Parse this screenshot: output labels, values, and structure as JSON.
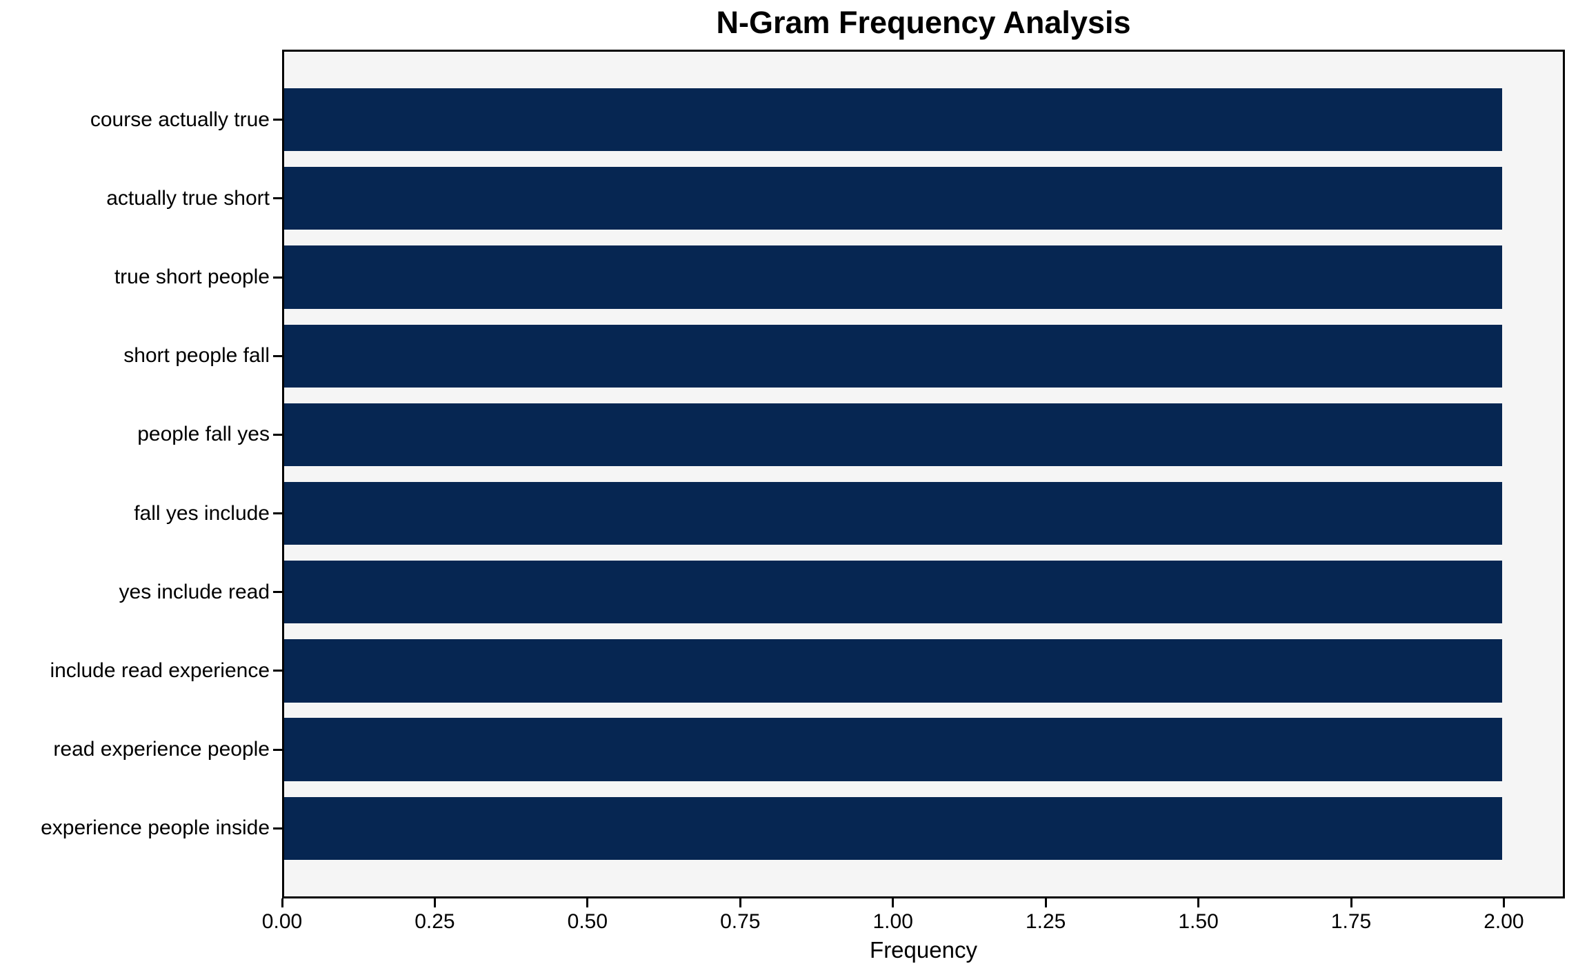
{
  "chart_data": {
    "type": "bar",
    "orientation": "horizontal",
    "title": "N-Gram Frequency Analysis",
    "xlabel": "Frequency",
    "ylabel": "",
    "categories": [
      "course actually true",
      "actually true short",
      "true short people",
      "short people fall",
      "people fall yes",
      "fall yes include",
      "yes include read",
      "include read experience",
      "read experience people",
      "experience people inside"
    ],
    "values": [
      2,
      2,
      2,
      2,
      2,
      2,
      2,
      2,
      2,
      2
    ],
    "xlim": [
      0,
      2.1
    ],
    "xticks": [
      0,
      0.25,
      0.5,
      0.75,
      1.0,
      1.25,
      1.5,
      1.75,
      2.0
    ],
    "xtick_labels": [
      "0.00",
      "0.25",
      "0.50",
      "0.75",
      "1.00",
      "1.25",
      "1.50",
      "1.75",
      "2.00"
    ],
    "grid": false,
    "legend": null,
    "bar_rel_height": 0.8,
    "y_outer_pad_units": 0.89,
    "colors": {
      "bar": "#062652",
      "plot_background": "#f5f5f5",
      "figure_background": "#ffffff",
      "text": "#000000",
      "spine": "#000000"
    }
  }
}
